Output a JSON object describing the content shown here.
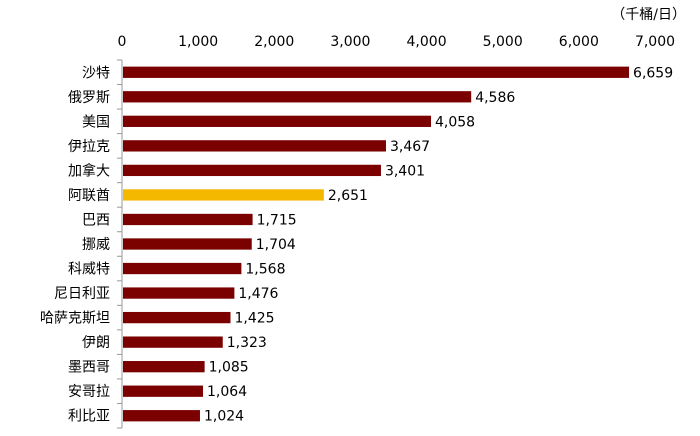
{
  "chart_data": {
    "type": "bar",
    "orientation": "horizontal",
    "unit_label": "（千桶/日）",
    "categories": [
      "沙特",
      "俄罗斯",
      "美国",
      "伊拉克",
      "加拿大",
      "阿联酋",
      "巴西",
      "挪威",
      "科威特",
      "尼日利亚",
      "哈萨克斯坦",
      "伊朗",
      "墨西哥",
      "安哥拉",
      "利比亚"
    ],
    "values": [
      6659,
      4586,
      4058,
      3467,
      3401,
      2651,
      1715,
      1704,
      1568,
      1476,
      1425,
      1323,
      1085,
      1064,
      1024
    ],
    "value_labels": [
      "6,659",
      "4,586",
      "4,058",
      "3,467",
      "3,401",
      "2,651",
      "1,715",
      "1,704",
      "1,568",
      "1,476",
      "1,425",
      "1,323",
      "1,085",
      "1,064",
      "1,024"
    ],
    "xlim": [
      0,
      7000
    ],
    "x_ticks": [
      0,
      1000,
      2000,
      3000,
      4000,
      5000,
      6000,
      7000
    ],
    "x_tick_labels": [
      "0",
      "1,000",
      "2,000",
      "3,000",
      "4,000",
      "5,000",
      "6,000",
      "7,000"
    ],
    "x_axis_position": "top",
    "grid": false,
    "legend": "none",
    "colors": {
      "default": "#7b0000",
      "highlight": "#f5b800",
      "axis": "#999999"
    },
    "highlight_index": 5
  }
}
